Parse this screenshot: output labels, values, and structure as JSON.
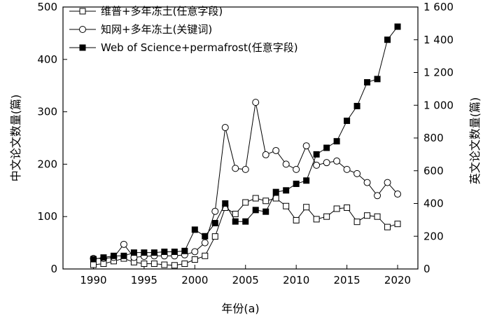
{
  "chart_data": {
    "type": "line",
    "xlabel": "年份(a)",
    "ylabel_left": "中文论文数量(篇)",
    "ylabel_right": "英文论文数量(篇)",
    "xlim": [
      1987,
      2022
    ],
    "ylim_left": [
      0,
      500
    ],
    "ylim_right": [
      0,
      1600
    ],
    "x_ticks": [
      1990,
      1995,
      2000,
      2005,
      2010,
      2015,
      2020
    ],
    "y_left_ticks": [
      0,
      100,
      200,
      300,
      400,
      500
    ],
    "y_right_ticks": [
      0,
      200,
      400,
      600,
      800,
      1000,
      1200,
      1400,
      1600
    ],
    "x_tick_labels": [
      "1990",
      "1995",
      "2000",
      "2005",
      "2010",
      "2015",
      "2020"
    ],
    "y_left_tick_labels": [
      "0",
      "100",
      "200",
      "300",
      "400",
      "500"
    ],
    "y_right_tick_labels": [
      "0",
      "200",
      "400",
      "600",
      "800",
      "1 000",
      "1 200",
      "1 400",
      "1 600"
    ],
    "legend_position": "top-left",
    "series": [
      {
        "name": "维普+多年冻土(任意字段)",
        "axis": "left",
        "marker": "open-square",
        "color": "#000000",
        "x": [
          1990,
          1991,
          1992,
          1993,
          1994,
          1995,
          1996,
          1997,
          1998,
          1999,
          2000,
          2001,
          2002,
          2003,
          2004,
          2005,
          2006,
          2007,
          2008,
          2009,
          2010,
          2011,
          2012,
          2013,
          2014,
          2015,
          2016,
          2017,
          2018,
          2019,
          2020
        ],
        "values": [
          8,
          10,
          15,
          20,
          13,
          10,
          10,
          8,
          7,
          10,
          18,
          25,
          62,
          117,
          105,
          127,
          135,
          130,
          135,
          120,
          93,
          118,
          95,
          100,
          115,
          117,
          90,
          102,
          100,
          80,
          86
        ]
      },
      {
        "name": "知网+多年冻土(关键词)",
        "axis": "left",
        "marker": "open-circle",
        "color": "#000000",
        "x": [
          1990,
          1991,
          1992,
          1993,
          1994,
          1995,
          1996,
          1997,
          1998,
          1999,
          2000,
          2001,
          2002,
          2003,
          2004,
          2005,
          2006,
          2007,
          2008,
          2009,
          2010,
          2011,
          2012,
          2013,
          2014,
          2015,
          2016,
          2017,
          2018,
          2019,
          2020
        ],
        "values": [
          20,
          20,
          22,
          47,
          22,
          24,
          25,
          25,
          25,
          27,
          33,
          50,
          110,
          270,
          192,
          190,
          318,
          218,
          226,
          200,
          190,
          235,
          198,
          203,
          206,
          190,
          182,
          165,
          140,
          165,
          143
        ]
      },
      {
        "name": "Web of Science+permafrost(任意字段)",
        "axis": "right",
        "marker": "filled-square",
        "color": "#000000",
        "x": [
          1990,
          1991,
          1992,
          1993,
          1994,
          1995,
          1996,
          1997,
          1998,
          1999,
          2000,
          2001,
          2002,
          2003,
          2004,
          2005,
          2006,
          2007,
          2008,
          2009,
          2010,
          2011,
          2012,
          2013,
          2014,
          2015,
          2016,
          2017,
          2018,
          2019,
          2020
        ],
        "values": [
          60,
          70,
          80,
          80,
          100,
          100,
          100,
          105,
          105,
          110,
          240,
          200,
          280,
          400,
          290,
          290,
          360,
          350,
          470,
          480,
          520,
          540,
          700,
          740,
          780,
          905,
          995,
          1140,
          1160,
          1400,
          1480
        ]
      }
    ]
  }
}
